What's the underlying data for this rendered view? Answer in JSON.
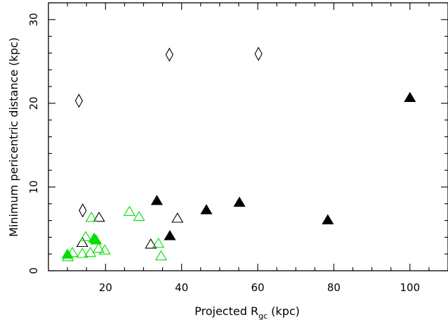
{
  "chart_data": {
    "type": "scatter",
    "title": "",
    "xlabel": {
      "prefix": "Projected R",
      "subscript": "gc",
      "suffix": " (kpc)"
    },
    "ylabel": "Minimum pericentric distance (kpc)",
    "xlim": [
      5,
      110
    ],
    "ylim": [
      0,
      32
    ],
    "xticks": [
      20,
      40,
      60,
      80,
      100
    ],
    "yticks": [
      0,
      10,
      20,
      30
    ],
    "grid": false,
    "legend": "none",
    "colors": {
      "green": "#00e000",
      "black": "#000000"
    },
    "series": [
      {
        "marker": "diamond-open",
        "color": "#000000",
        "points": [
          [
            13.0,
            20.3
          ],
          [
            36.8,
            25.8
          ],
          [
            60.2,
            25.9
          ],
          [
            14.0,
            7.2
          ]
        ]
      },
      {
        "marker": "triangle-filled",
        "color": "#000000",
        "points": [
          [
            100.0,
            20.6
          ],
          [
            33.5,
            8.3
          ],
          [
            55.2,
            8.1
          ],
          [
            46.5,
            7.2
          ],
          [
            78.4,
            6.0
          ],
          [
            36.9,
            4.1
          ]
        ]
      },
      {
        "marker": "triangle-open",
        "color": "#000000",
        "points": [
          [
            18.3,
            6.3
          ],
          [
            38.9,
            6.2
          ],
          [
            13.9,
            3.3
          ],
          [
            31.9,
            3.1
          ]
        ]
      },
      {
        "marker": "triangle-open",
        "color": "#00e000",
        "points": [
          [
            26.3,
            7.0
          ],
          [
            28.8,
            6.4
          ],
          [
            16.3,
            6.3
          ],
          [
            14.8,
            4.0
          ],
          [
            33.9,
            3.2
          ],
          [
            34.6,
            1.7
          ],
          [
            18.2,
            2.6
          ],
          [
            19.8,
            2.4
          ],
          [
            16.0,
            2.1
          ],
          [
            13.9,
            2.0
          ],
          [
            11.3,
            2.1
          ],
          [
            10.1,
            1.6
          ]
        ]
      },
      {
        "marker": "triangle-filled",
        "color": "#00e000",
        "points": [
          [
            17.0,
            3.8
          ],
          [
            17.5,
            3.6
          ],
          [
            10.0,
            1.9
          ]
        ]
      }
    ]
  }
}
